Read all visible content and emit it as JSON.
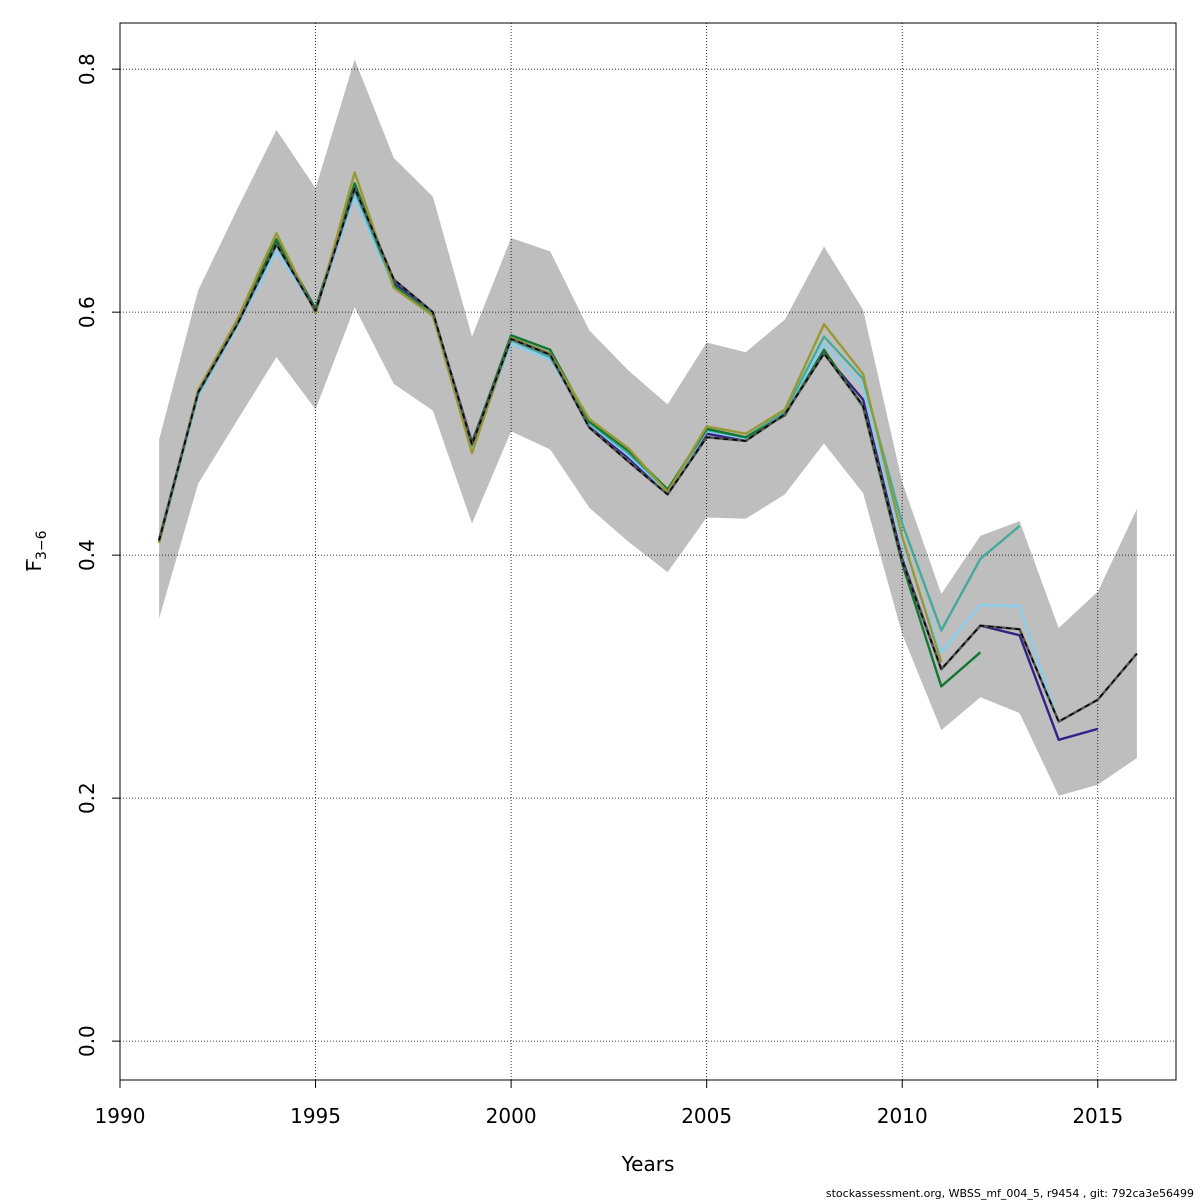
{
  "chart_data": {
    "type": "line",
    "xlabel": "Years",
    "ylabel_main": "F",
    "ylabel_sub": "3−6",
    "xlim": [
      1990,
      2017
    ],
    "ylim": [
      -0.032,
      0.838
    ],
    "xticks": [
      1990,
      1995,
      2000,
      2005,
      2010,
      2015
    ],
    "yticks": [
      0.0,
      0.2,
      0.4,
      0.6,
      0.8
    ],
    "xtick_labels": [
      "1990",
      "1995",
      "2000",
      "2005",
      "2010",
      "2015"
    ],
    "ytick_labels": [
      "0.0",
      "0.2",
      "0.4",
      "0.6",
      "0.8"
    ],
    "grid": true,
    "band": {
      "color": "#bebebe",
      "x": [
        1991,
        1992,
        1993,
        1994,
        1995,
        1996,
        1997,
        1998,
        1999,
        2000,
        2001,
        2002,
        2003,
        2004,
        2005,
        2006,
        2007,
        2008,
        2009,
        2010,
        2011,
        2012,
        2013,
        2014,
        2015,
        2016
      ],
      "upper": [
        0.495,
        0.618,
        0.685,
        0.75,
        0.702,
        0.808,
        0.727,
        0.695,
        0.58,
        0.661,
        0.65,
        0.585,
        0.552,
        0.524,
        0.575,
        0.567,
        0.594,
        0.654,
        0.602,
        0.46,
        0.368,
        0.416,
        0.428,
        0.34,
        0.37,
        0.438
      ],
      "lower": [
        0.348,
        0.459,
        0.511,
        0.563,
        0.52,
        0.604,
        0.541,
        0.519,
        0.426,
        0.502,
        0.487,
        0.439,
        0.411,
        0.386,
        0.431,
        0.43,
        0.45,
        0.492,
        0.451,
        0.335,
        0.256,
        0.283,
        0.27,
        0.202,
        0.211,
        0.233
      ]
    },
    "series": [
      {
        "color": "#332288",
        "dashed": false,
        "x": [
          1991,
          1992,
          1993,
          1994,
          1995,
          1996,
          1997,
          1998,
          1999,
          2000,
          2001,
          2002,
          2003,
          2004,
          2005,
          2006,
          2007,
          2008,
          2009,
          2010,
          2011,
          2012,
          2013,
          2014,
          2015
        ],
        "y": [
          0.412,
          0.534,
          0.59,
          0.657,
          0.601,
          0.703,
          0.624,
          0.599,
          0.493,
          0.579,
          0.566,
          0.507,
          0.48,
          0.451,
          0.5,
          0.494,
          0.517,
          0.566,
          0.528,
          0.397,
          0.306,
          0.342,
          0.334,
          0.248,
          0.257
        ]
      },
      {
        "color": "#88ccee",
        "dashed": false,
        "x": [
          1991,
          1992,
          1993,
          1994,
          1995,
          1996,
          1997,
          1998,
          1999,
          2000,
          2001,
          2002,
          2003,
          2004,
          2005,
          2006,
          2007,
          2008,
          2009,
          2010,
          2011,
          2012,
          2013,
          2014
        ],
        "y": [
          0.41,
          0.531,
          0.588,
          0.65,
          0.602,
          0.695,
          0.62,
          0.597,
          0.487,
          0.574,
          0.561,
          0.508,
          0.482,
          0.452,
          0.502,
          0.496,
          0.517,
          0.574,
          0.538,
          0.41,
          0.32,
          0.359,
          0.358,
          0.262
        ]
      },
      {
        "color": "#44aa99",
        "dashed": false,
        "x": [
          1991,
          1992,
          1993,
          1994,
          1995,
          1996,
          1997,
          1998,
          1999,
          2000,
          2001,
          2002,
          2003,
          2004,
          2005,
          2006,
          2007,
          2008,
          2009,
          2010,
          2011,
          2012,
          2013
        ],
        "y": [
          0.412,
          0.533,
          0.59,
          0.655,
          0.603,
          0.7,
          0.622,
          0.598,
          0.49,
          0.577,
          0.563,
          0.509,
          0.484,
          0.453,
          0.503,
          0.497,
          0.518,
          0.58,
          0.545,
          0.426,
          0.338,
          0.397,
          0.424
        ]
      },
      {
        "color": "#117733",
        "dashed": false,
        "x": [
          1991,
          1992,
          1993,
          1994,
          1995,
          1996,
          1997,
          1998,
          1999,
          2000,
          2001,
          2002,
          2003,
          2004,
          2005,
          2006,
          2007,
          2008,
          2009,
          2010,
          2011,
          2012
        ],
        "y": [
          0.413,
          0.535,
          0.592,
          0.66,
          0.603,
          0.706,
          0.622,
          0.597,
          0.492,
          0.581,
          0.569,
          0.51,
          0.486,
          0.454,
          0.504,
          0.497,
          0.515,
          0.569,
          0.522,
          0.393,
          0.292,
          0.32
        ]
      },
      {
        "color": "#999933",
        "dashed": false,
        "x": [
          1991,
          1992,
          1993,
          1994,
          1995,
          1996,
          1997,
          1998,
          1999,
          2000,
          2001,
          2002,
          2003,
          2004,
          2005,
          2006,
          2007,
          2008,
          2009,
          2010,
          2011
        ],
        "y": [
          0.41,
          0.536,
          0.594,
          0.665,
          0.599,
          0.715,
          0.62,
          0.597,
          0.484,
          0.579,
          0.566,
          0.512,
          0.488,
          0.452,
          0.506,
          0.5,
          0.52,
          0.59,
          0.549,
          0.415,
          0.312
        ]
      },
      {
        "color": "#000000",
        "dashed": true,
        "x": [
          1991,
          1992,
          1993,
          1994,
          1995,
          1996,
          1997,
          1998,
          1999,
          2000,
          2001,
          2002,
          2003,
          2004,
          2005,
          2006,
          2007,
          2008,
          2009,
          2010,
          2011,
          2012,
          2013,
          2014,
          2015,
          2016
        ],
        "y": [
          0.412,
          0.534,
          0.59,
          0.656,
          0.601,
          0.702,
          0.627,
          0.6,
          0.491,
          0.578,
          0.565,
          0.505,
          0.477,
          0.45,
          0.497,
          0.494,
          0.516,
          0.566,
          0.523,
          0.395,
          0.306,
          0.342,
          0.339,
          0.263,
          0.281,
          0.319
        ]
      }
    ]
  },
  "footer": {
    "text": "stockassessment.org, WBSS_mf_004_5, r9454 , git: 792ca3e56499"
  }
}
